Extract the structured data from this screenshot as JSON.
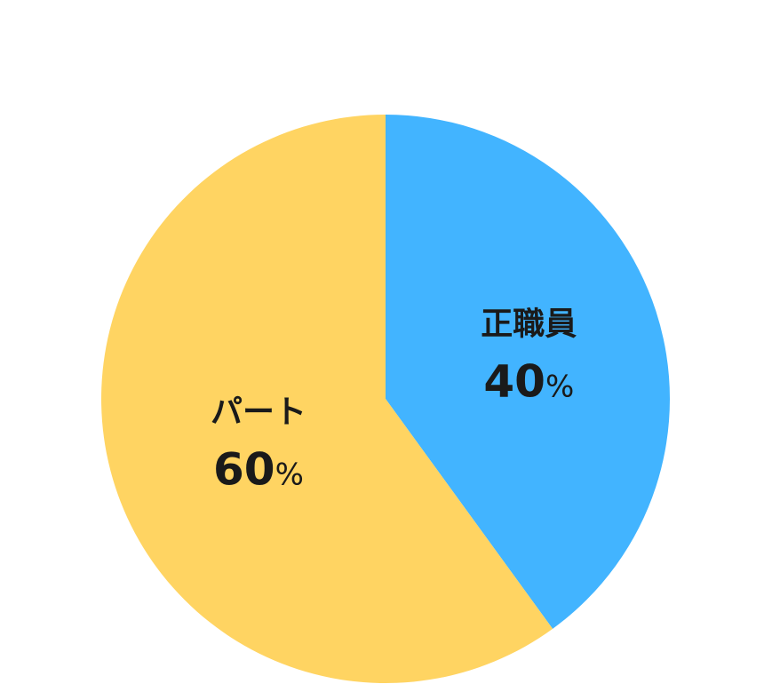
{
  "chart_data": {
    "type": "pie",
    "start": "top",
    "direction": "clockwise",
    "slices": [
      {
        "label": "正職員",
        "value": 40,
        "display": "40",
        "unit": "%",
        "color": "#42B4FF"
      },
      {
        "label": "パート",
        "value": 60,
        "display": "60",
        "unit": "%",
        "color": "#FFD462"
      }
    ]
  }
}
